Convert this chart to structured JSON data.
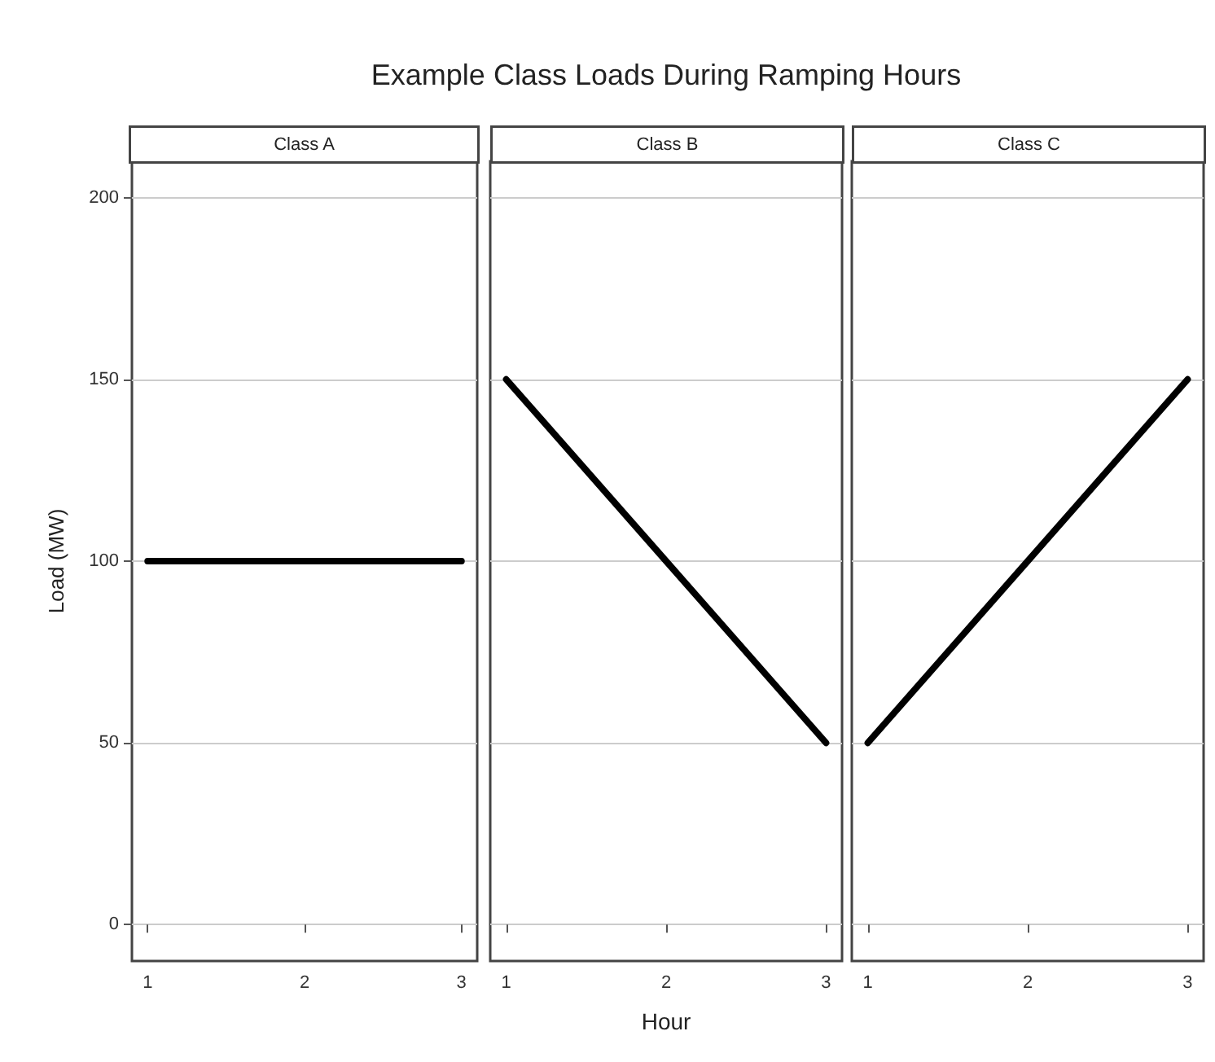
{
  "chart_data": [
    {
      "type": "line",
      "title": "Class A",
      "ylabel": "Load (MW)",
      "annotations": [
        "Example Class Loads During Ramping Hours"
      ],
      "series": [
        {
          "color": "#000000",
          "x": [
            1,
            2,
            3
          ],
          "values": [
            100,
            100,
            100
          ]
        }
      ],
      "xlim": [
        0.9,
        3.1
      ],
      "ylim": [
        -10,
        210
      ],
      "xticks": [
        1,
        2,
        3
      ],
      "yticks": [
        0,
        50,
        100,
        150,
        200
      ],
      "grid": "y",
      "marker": "none",
      "line_style": "solid"
    },
    {
      "type": "line",
      "title": "Class B",
      "xlabel": "Hour",
      "series": [
        {
          "color": "#000000",
          "x": [
            1,
            2,
            3
          ],
          "values": [
            150,
            100,
            50
          ]
        }
      ],
      "xlim": [
        0.9,
        3.1
      ],
      "ylim": [
        -10,
        210
      ],
      "xticks": [
        1,
        2,
        3
      ],
      "yticks": [
        0,
        50,
        100,
        150,
        200
      ],
      "grid": "y",
      "marker": "none",
      "line_style": "solid",
      "tick_labels": "x"
    },
    {
      "type": "line",
      "title": "Class C",
      "series": [
        {
          "color": "#000000",
          "x": [
            1,
            2,
            3
          ],
          "values": [
            50,
            100,
            150
          ]
        }
      ],
      "xlim": [
        0.9,
        3.1
      ],
      "ylim": [
        -10,
        210
      ],
      "xticks": [
        1,
        2,
        3
      ],
      "yticks": [
        0,
        50,
        100,
        150,
        200
      ],
      "grid": "y",
      "marker": "none",
      "line_style": "solid",
      "tick_labels": "x"
    }
  ]
}
